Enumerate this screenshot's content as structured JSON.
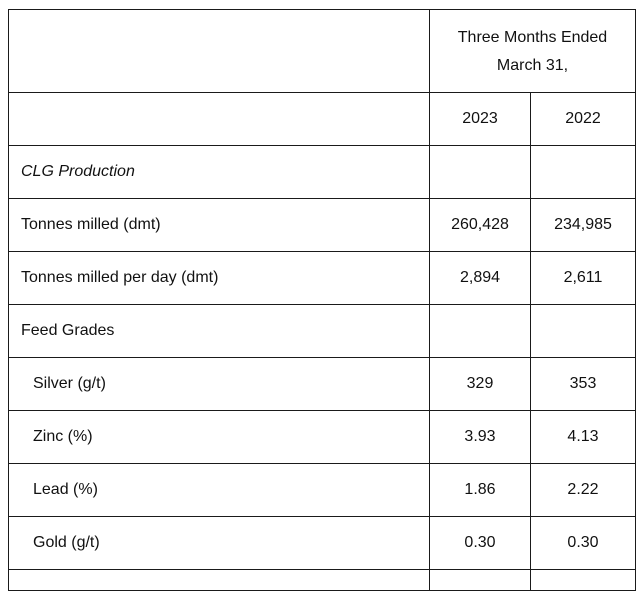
{
  "header": {
    "period_line1": "Three Months Ended",
    "period_line2": "March 31,",
    "years": [
      "2023",
      "2022"
    ]
  },
  "rows": [
    {
      "label": "CLG Production",
      "v2023": "",
      "v2022": ""
    },
    {
      "label": "Tonnes milled (dmt)",
      "v2023": "260,428",
      "v2022": "234,985"
    },
    {
      "label": "Tonnes milled per day (dmt)",
      "v2023": "2,894",
      "v2022": "2,611"
    },
    {
      "label": "Feed Grades",
      "v2023": "",
      "v2022": ""
    },
    {
      "label": "Silver (g/t)",
      "v2023": "329",
      "v2022": "353"
    },
    {
      "label": "Zinc (%)",
      "v2023": "3.93",
      "v2022": "4.13"
    },
    {
      "label": "Lead (%)",
      "v2023": "1.86",
      "v2022": "2.22"
    },
    {
      "label": "Gold (g/t)",
      "v2023": "0.30",
      "v2022": "0.30"
    }
  ]
}
